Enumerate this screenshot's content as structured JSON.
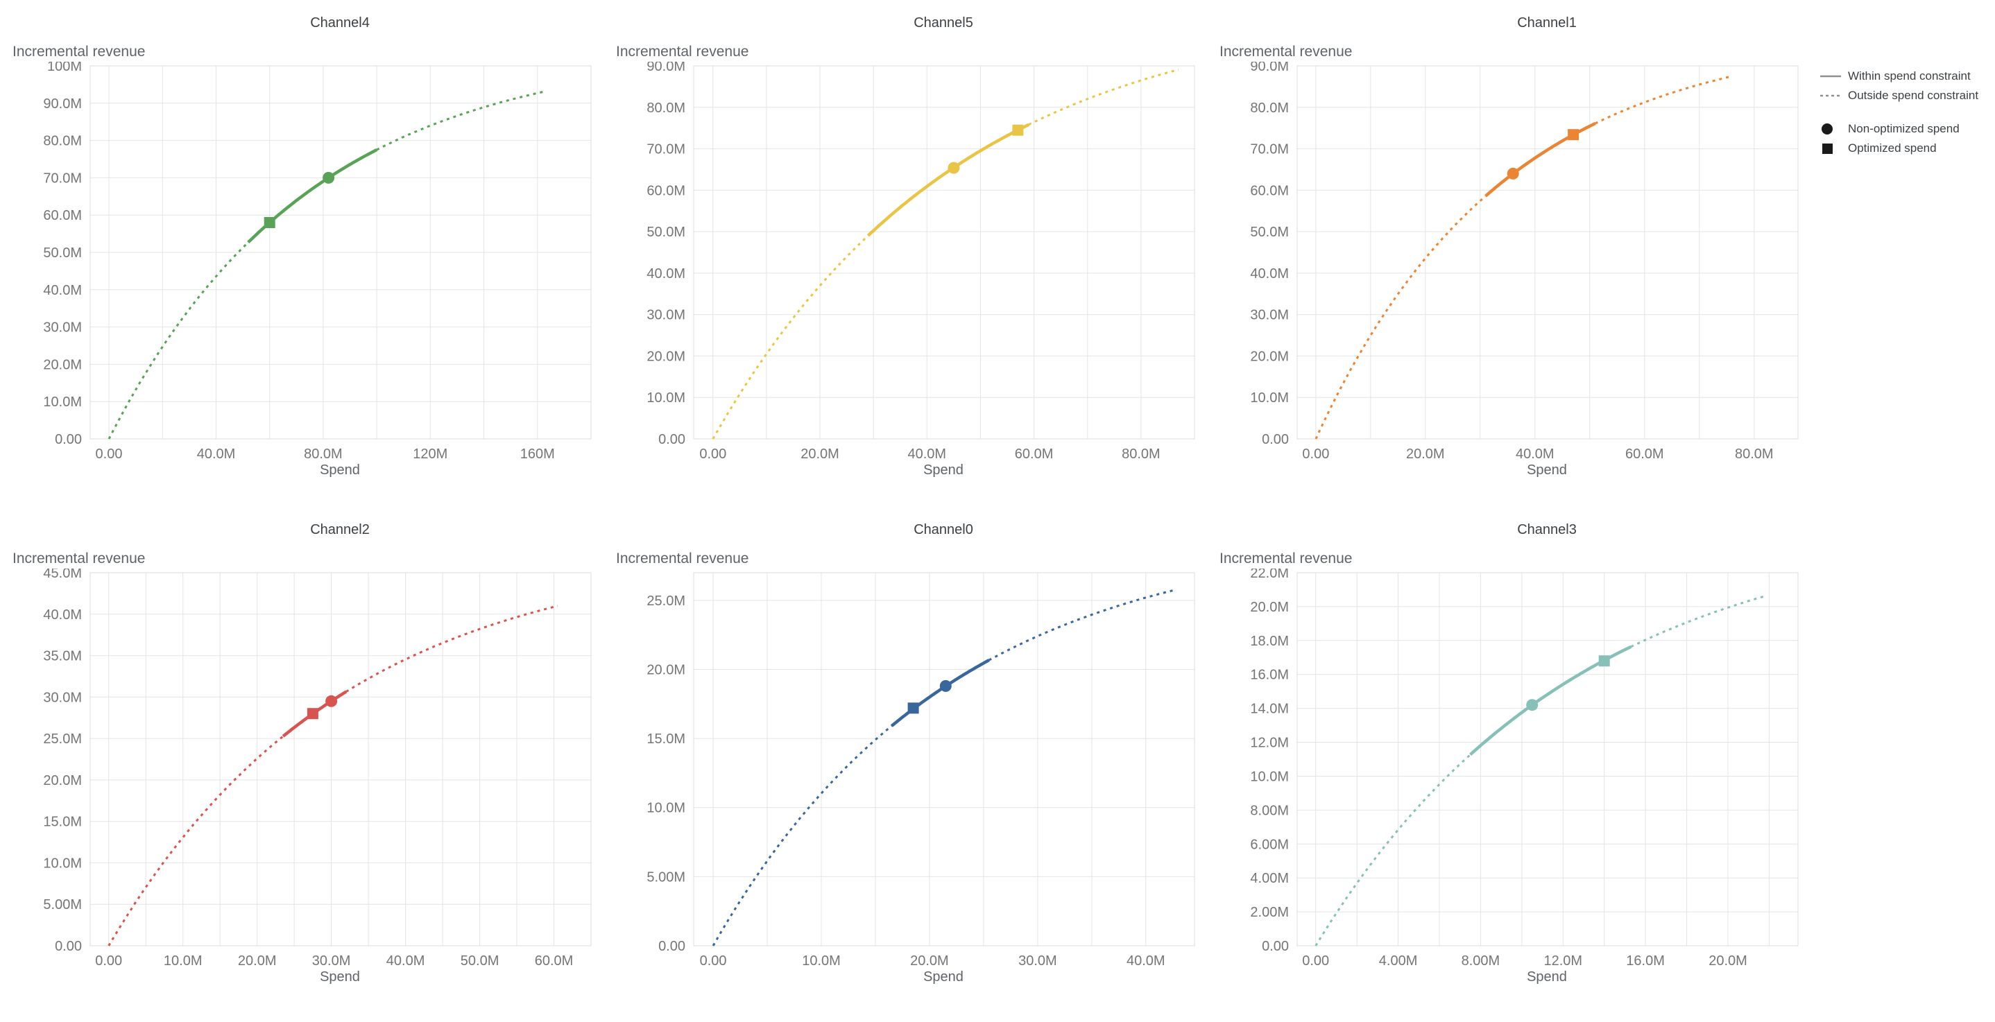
{
  "page": {
    "background": "#ffffff"
  },
  "legend": {
    "line_color": "#8f8f8f",
    "marker_color": "#1a1a1a",
    "line_items": [
      {
        "label": "Within spend constraint",
        "style": "solid"
      },
      {
        "label": "Outside spend constraint",
        "style": "dashed"
      }
    ],
    "marker_items": [
      {
        "label": "Non-optimized spend",
        "marker": "circle"
      },
      {
        "label": "Optimized spend",
        "marker": "square"
      }
    ]
  },
  "chart_data": [
    {
      "type": "line",
      "title": "Channel4",
      "ylabel": "Incremental revenue",
      "xlabel": "Spend",
      "color": "#59a257",
      "units": "millions",
      "curve_model": {
        "form": "y = ymax*(1-exp(-k*x))",
        "ymax": 105,
        "k": 0.0134,
        "x_start": 0,
        "x_end": 163
      },
      "within_spend_constraint_range": [
        52,
        100
      ],
      "points": {
        "origin": {
          "x": 0,
          "y": 0
        },
        "non_optimized_spend": {
          "x": 82,
          "y": 70.0
        },
        "optimized_spend": {
          "x": 60,
          "y": 58.0
        },
        "curve_end": {
          "x": 163,
          "y": 93.2
        }
      },
      "xlim": [
        -7,
        180
      ],
      "ylim": [
        0,
        100
      ],
      "x_ticks": [
        {
          "v": 0,
          "label": "0.00"
        },
        {
          "v": 40,
          "label": "40.0M"
        },
        {
          "v": 80,
          "label": "80.0M"
        },
        {
          "v": 120,
          "label": "120M"
        },
        {
          "v": 160,
          "label": "160M"
        }
      ],
      "y_ticks": [
        {
          "v": 0,
          "label": "0.00"
        },
        {
          "v": 10,
          "label": "10.0M"
        },
        {
          "v": 20,
          "label": "20.0M"
        },
        {
          "v": 30,
          "label": "30.0M"
        },
        {
          "v": 40,
          "label": "40.0M"
        },
        {
          "v": 50,
          "label": "50.0M"
        },
        {
          "v": 60,
          "label": "60.0M"
        },
        {
          "v": 70,
          "label": "70.0M"
        },
        {
          "v": 80,
          "label": "80.0M"
        },
        {
          "v": 90,
          "label": "90.0M"
        },
        {
          "v": 100,
          "label": "100M"
        }
      ]
    },
    {
      "type": "line",
      "title": "Channel5",
      "ylabel": "Incremental revenue",
      "xlabel": "Spend",
      "color": "#e9c547",
      "units": "millions",
      "curve_model": {
        "form": "y = ymax*(1-exp(-k*x))",
        "ymax": 105,
        "k": 0.0217,
        "x_start": 0,
        "x_end": 87
      },
      "within_spend_constraint_range": [
        29,
        59
      ],
      "points": {
        "origin": {
          "x": 0,
          "y": 0
        },
        "non_optimized_spend": {
          "x": 45,
          "y": 65.4
        },
        "optimized_spend": {
          "x": 57,
          "y": 74.5
        },
        "curve_end": {
          "x": 87,
          "y": 89.1
        }
      },
      "xlim": [
        -3.6,
        90
      ],
      "ylim": [
        0,
        90
      ],
      "x_ticks": [
        {
          "v": 0,
          "label": "0.00"
        },
        {
          "v": 20,
          "label": "20.0M"
        },
        {
          "v": 40,
          "label": "40.0M"
        },
        {
          "v": 60,
          "label": "60.0M"
        },
        {
          "v": 80,
          "label": "80.0M"
        }
      ],
      "y_ticks": [
        {
          "v": 0,
          "label": "0.00"
        },
        {
          "v": 10,
          "label": "10.0M"
        },
        {
          "v": 20,
          "label": "20.0M"
        },
        {
          "v": 30,
          "label": "30.0M"
        },
        {
          "v": 40,
          "label": "40.0M"
        },
        {
          "v": 50,
          "label": "50.0M"
        },
        {
          "v": 60,
          "label": "60.0M"
        },
        {
          "v": 70,
          "label": "70.0M"
        },
        {
          "v": 80,
          "label": "80.0M"
        },
        {
          "v": 90,
          "label": "90.0M"
        }
      ]
    },
    {
      "type": "line",
      "title": "Channel1",
      "ylabel": "Incremental revenue",
      "xlabel": "Spend",
      "color": "#e98534",
      "units": "millions",
      "curve_model": {
        "form": "y = ymax*(1-exp(-k*x))",
        "ymax": 98,
        "k": 0.0294,
        "x_start": 0,
        "x_end": 76
      },
      "within_spend_constraint_range": [
        31,
        51
      ],
      "points": {
        "origin": {
          "x": 0,
          "y": 0
        },
        "non_optimized_spend": {
          "x": 36,
          "y": 64.0
        },
        "optimized_spend": {
          "x": 47,
          "y": 73.4
        },
        "curve_end": {
          "x": 76,
          "y": 87.5
        }
      },
      "xlim": [
        -3.4,
        88
      ],
      "ylim": [
        0,
        90
      ],
      "x_ticks": [
        {
          "v": 0,
          "label": "0.00"
        },
        {
          "v": 20,
          "label": "20.0M"
        },
        {
          "v": 40,
          "label": "40.0M"
        },
        {
          "v": 60,
          "label": "60.0M"
        },
        {
          "v": 80,
          "label": "80.0M"
        }
      ],
      "y_ticks": [
        {
          "v": 0,
          "label": "0.00"
        },
        {
          "v": 10,
          "label": "10.0M"
        },
        {
          "v": 20,
          "label": "20.0M"
        },
        {
          "v": 30,
          "label": "30.0M"
        },
        {
          "v": 40,
          "label": "40.0M"
        },
        {
          "v": 50,
          "label": "50.0M"
        },
        {
          "v": 60,
          "label": "60.0M"
        },
        {
          "v": 70,
          "label": "70.0M"
        },
        {
          "v": 80,
          "label": "80.0M"
        },
        {
          "v": 90,
          "label": "90.0M"
        }
      ]
    },
    {
      "type": "line",
      "title": "Channel2",
      "ylabel": "Incremental revenue",
      "xlabel": "Spend",
      "color": "#d85450",
      "units": "millions",
      "curve_model": {
        "form": "y = ymax*(1-exp(-k*x))",
        "ymax": 48,
        "k": 0.0318,
        "x_start": 0,
        "x_end": 60.5
      },
      "within_spend_constraint_range": [
        23.5,
        32
      ],
      "points": {
        "origin": {
          "x": 0,
          "y": 0
        },
        "non_optimized_spend": {
          "x": 30,
          "y": 29.5
        },
        "optimized_spend": {
          "x": 27.5,
          "y": 28.0
        },
        "curve_end": {
          "x": 60.5,
          "y": 41.0
        }
      },
      "xlim": [
        -2.5,
        65
      ],
      "ylim": [
        0,
        45
      ],
      "x_ticks": [
        {
          "v": 0,
          "label": "0.00"
        },
        {
          "v": 10,
          "label": "10.0M"
        },
        {
          "v": 20,
          "label": "20.0M"
        },
        {
          "v": 30,
          "label": "30.0M"
        },
        {
          "v": 40,
          "label": "40.0M"
        },
        {
          "v": 50,
          "label": "50.0M"
        },
        {
          "v": 60,
          "label": "60.0M"
        }
      ],
      "y_ticks": [
        {
          "v": 0,
          "label": "0.00"
        },
        {
          "v": 5,
          "label": "5.00M"
        },
        {
          "v": 10,
          "label": "10.0M"
        },
        {
          "v": 15,
          "label": "15.0M"
        },
        {
          "v": 20,
          "label": "20.0M"
        },
        {
          "v": 25,
          "label": "25.0M"
        },
        {
          "v": 30,
          "label": "30.0M"
        },
        {
          "v": 35,
          "label": "35.0M"
        },
        {
          "v": 40,
          "label": "40.0M"
        },
        {
          "v": 45,
          "label": "45.0M"
        }
      ]
    },
    {
      "type": "line",
      "title": "Channel0",
      "ylabel": "Incremental revenue",
      "xlabel": "Spend",
      "color": "#3a679b",
      "units": "millions",
      "curve_model": {
        "form": "y = ymax*(1-exp(-k*x))",
        "ymax": 30,
        "k": 0.0458,
        "x_start": 0,
        "x_end": 42.5
      },
      "within_spend_constraint_range": [
        16.5,
        25.5
      ],
      "points": {
        "origin": {
          "x": 0,
          "y": 0
        },
        "non_optimized_spend": {
          "x": 21.5,
          "y": 18.8
        },
        "optimized_spend": {
          "x": 18.5,
          "y": 17.2
        },
        "curve_end": {
          "x": 42.5,
          "y": 25.7
        }
      },
      "xlim": [
        -1.8,
        44.5
      ],
      "ylim": [
        0,
        27
      ],
      "x_ticks": [
        {
          "v": 0,
          "label": "0.00"
        },
        {
          "v": 10,
          "label": "10.0M"
        },
        {
          "v": 20,
          "label": "20.0M"
        },
        {
          "v": 30,
          "label": "30.0M"
        },
        {
          "v": 40,
          "label": "40.0M"
        }
      ],
      "y_ticks": [
        {
          "v": 0,
          "label": "0.00"
        },
        {
          "v": 5,
          "label": "5.00M"
        },
        {
          "v": 10,
          "label": "10.0M"
        },
        {
          "v": 15,
          "label": "15.0M"
        },
        {
          "v": 20,
          "label": "20.0M"
        },
        {
          "v": 25,
          "label": "25.0M"
        }
      ]
    },
    {
      "type": "line",
      "title": "Channel3",
      "ylabel": "Incremental revenue",
      "xlabel": "Spend",
      "color": "#86c0b8",
      "units": "millions",
      "curve_model": {
        "form": "y = ymax*(1-exp(-k*x))",
        "ymax": 25,
        "k": 0.0799,
        "x_start": 0,
        "x_end": 21.8
      },
      "within_spend_constraint_range": [
        7.5,
        15.3
      ],
      "points": {
        "origin": {
          "x": 0,
          "y": 0
        },
        "non_optimized_spend": {
          "x": 10.5,
          "y": 14.2
        },
        "optimized_spend": {
          "x": 14,
          "y": 16.8
        },
        "curve_end": {
          "x": 21.8,
          "y": 20.6
        }
      },
      "xlim": [
        -0.9,
        23.4
      ],
      "ylim": [
        0,
        22
      ],
      "x_ticks": [
        {
          "v": 0,
          "label": "0.00"
        },
        {
          "v": 4,
          "label": "4.00M"
        },
        {
          "v": 8,
          "label": "8.00M"
        },
        {
          "v": 12,
          "label": "12.0M"
        },
        {
          "v": 16,
          "label": "16.0M"
        },
        {
          "v": 20,
          "label": "20.0M"
        }
      ],
      "y_ticks": [
        {
          "v": 0,
          "label": "0.00"
        },
        {
          "v": 2,
          "label": "2.00M"
        },
        {
          "v": 4,
          "label": "4.00M"
        },
        {
          "v": 6,
          "label": "6.00M"
        },
        {
          "v": 8,
          "label": "8.00M"
        },
        {
          "v": 10,
          "label": "10.0M"
        },
        {
          "v": 12,
          "label": "12.0M"
        },
        {
          "v": 14,
          "label": "14.0M"
        },
        {
          "v": 16,
          "label": "16.0M"
        },
        {
          "v": 18,
          "label": "18.0M"
        },
        {
          "v": 20,
          "label": "20.0M"
        },
        {
          "v": 22,
          "label": "22.0M"
        }
      ]
    }
  ]
}
